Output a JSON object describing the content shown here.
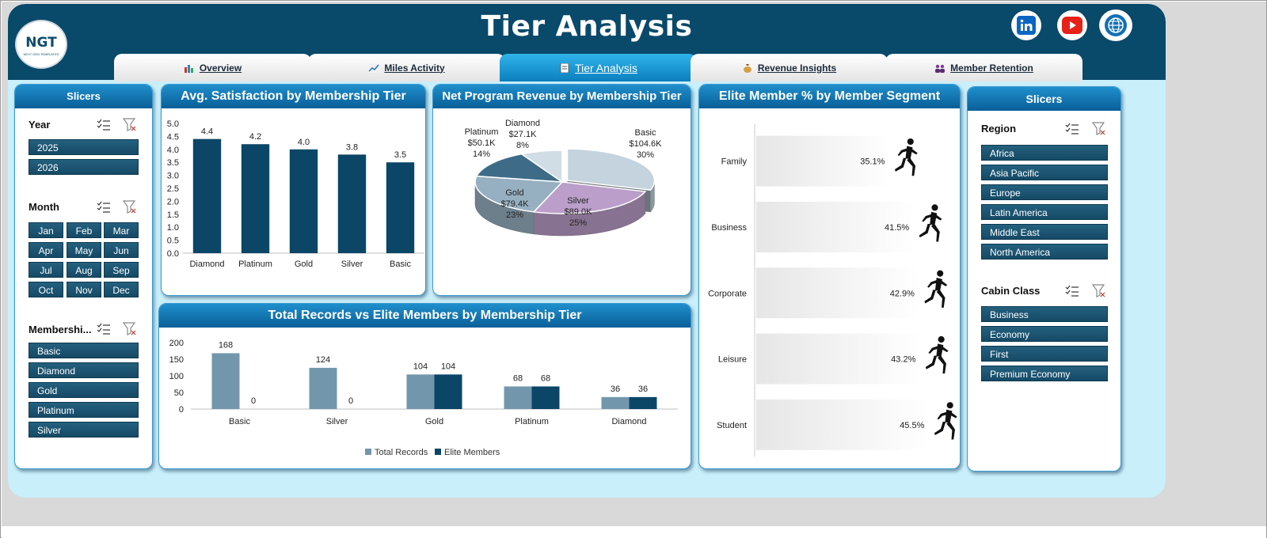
{
  "dashboard": {
    "title": "Tier Analysis",
    "logo_text": "NGT",
    "logo_subtext": "NEXT GEN TEMPLATES",
    "accent": "#09496a",
    "background": "#c9effb"
  },
  "social": [
    {
      "icon": "linkedin-icon",
      "color": "#0a66c2"
    },
    {
      "icon": "youtube-icon",
      "color": "#e62117"
    },
    {
      "icon": "globe-icon",
      "color": "#1170b5"
    }
  ],
  "tabs": [
    {
      "label": "Overview",
      "icon": "overview-icon",
      "active": false
    },
    {
      "label": "Miles Activity",
      "icon": "line-chart-icon",
      "active": false
    },
    {
      "label": "Tier Analysis",
      "icon": "document-icon",
      "active": true
    },
    {
      "label": "Revenue Insights",
      "icon": "money-bag-icon",
      "active": false
    },
    {
      "label": "Member Retention",
      "icon": "people-icon",
      "active": false
    }
  ],
  "left_slicers": {
    "title": "Slicers",
    "year": {
      "label": "Year",
      "items": [
        "2025",
        "2026"
      ]
    },
    "month": {
      "label": "Month",
      "items": [
        "Jan",
        "Feb",
        "Mar",
        "Apr",
        "May",
        "Jun",
        "Jul",
        "Aug",
        "Sep",
        "Oct",
        "Nov",
        "Dec"
      ]
    },
    "membership": {
      "label": "Membershi...",
      "items": [
        "Basic",
        "Diamond",
        "Gold",
        "Platinum",
        "Silver"
      ]
    }
  },
  "right_slicers": {
    "title": "Slicers",
    "region": {
      "label": "Region",
      "items": [
        "Africa",
        "Asia Pacific",
        "Europe",
        "Latin America",
        "Middle East",
        "North America"
      ]
    },
    "cabin": {
      "label": "Cabin Class",
      "items": [
        "Business",
        "Economy",
        "First",
        "Premium Economy"
      ]
    }
  },
  "charts": {
    "satisfaction": {
      "title": "Avg. Satisfaction by Membership Tier"
    },
    "revenue": {
      "title": "Net Program Revenue  by Membership Tier"
    },
    "records": {
      "title": "Total Records vs Elite Members by Membership Tier"
    },
    "elite": {
      "title": "Elite Member % by Member Segment"
    }
  },
  "chart_data": [
    {
      "type": "bar",
      "title": "Avg. Satisfaction by Membership Tier",
      "categories": [
        "Diamond",
        "Platinum",
        "Gold",
        "Silver",
        "Basic"
      ],
      "values": [
        4.4,
        4.2,
        4.0,
        3.8,
        3.5
      ],
      "value_labels": [
        "4.4",
        "4.2",
        "4.0",
        "3.8",
        "3.5"
      ],
      "yticks": [
        "5.0",
        "4.5",
        "4.0",
        "3.5",
        "3.0",
        "2.5",
        "2.0",
        "1.5",
        "1.0",
        "0.5",
        "0.0"
      ],
      "ylim": [
        0,
        5
      ],
      "color": "#0b4667"
    },
    {
      "type": "pie",
      "title": "Net Program Revenue  by Membership Tier",
      "labels": [
        "Basic",
        "Silver",
        "Gold",
        "Platinum",
        "Diamond"
      ],
      "values": [
        104.6,
        89.0,
        79.4,
        50.1,
        27.1
      ],
      "value_labels": [
        "$104.6K",
        "$89.0K",
        "$79.4K",
        "$50.1K",
        "$27.1K"
      ],
      "percent_labels": [
        "30%",
        "25%",
        "23%",
        "14%",
        "8%"
      ],
      "colors": [
        "#c4d3de",
        "#bb9ec9",
        "#97b0c1",
        "#3e6c88",
        "#d1dde5"
      ]
    },
    {
      "type": "bar",
      "title": "Total Records vs Elite Members by Membership Tier",
      "categories": [
        "Basic",
        "Silver",
        "Gold",
        "Platinum",
        "Diamond"
      ],
      "series": [
        {
          "name": "Total Records",
          "values": [
            168,
            124,
            104,
            68,
            36
          ],
          "color": "#7297ad"
        },
        {
          "name": "Elite Members",
          "values": [
            0,
            0,
            104,
            68,
            36
          ],
          "color": "#0b4667"
        }
      ],
      "yticks": [
        "200",
        "150",
        "100",
        "50",
        "0"
      ],
      "ylim": [
        0,
        200
      ],
      "legend": "bottom"
    },
    {
      "type": "bar",
      "orientation": "horizontal",
      "title": "Elite Member % by Member Segment",
      "categories": [
        "Family",
        "Business",
        "Corporate",
        "Leisure",
        "Student"
      ],
      "values": [
        35.1,
        41.5,
        42.9,
        43.2,
        45.5
      ],
      "value_labels": [
        "35.1%",
        "41.5%",
        "42.9%",
        "43.2%",
        "45.5%"
      ],
      "marker_icon": "runner-icon"
    }
  ]
}
